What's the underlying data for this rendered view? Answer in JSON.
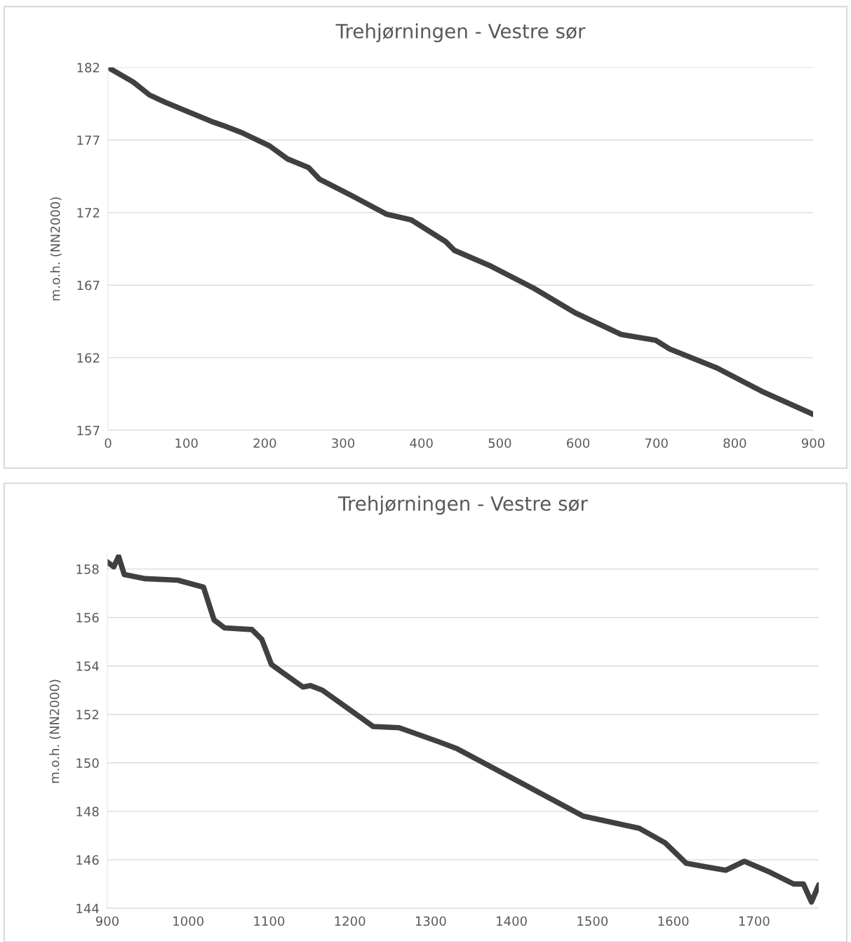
{
  "chart_data": [
    {
      "type": "line",
      "title": "Trehjørningen - Vestre sør",
      "ylabel": "m.o.h. (NN2000)",
      "xlim": [
        0,
        900
      ],
      "xticks": [
        0,
        100,
        200,
        300,
        400,
        500,
        600,
        700,
        800,
        900
      ],
      "ylim": [
        157,
        182
      ],
      "yticks": [
        157,
        162,
        167,
        172,
        177,
        182
      ],
      "grid": "y",
      "line_style": "solid",
      "series": [
        {
          "color": "#404040",
          "x": [
            0,
            32,
            53,
            73,
            131,
            147,
            171,
            206,
            229,
            256,
            270,
            310,
            355,
            387,
            431,
            442,
            489,
            543,
            596,
            655,
            699,
            717,
            777,
            834,
            900
          ],
          "values": [
            182.0,
            181.0,
            180.1,
            179.6,
            178.3,
            178.0,
            177.5,
            176.6,
            175.7,
            175.1,
            174.3,
            173.2,
            171.9,
            171.5,
            170.0,
            169.4,
            168.3,
            166.8,
            165.1,
            163.6,
            163.2,
            162.6,
            161.3,
            159.7,
            158.1
          ]
        }
      ]
    },
    {
      "type": "line",
      "title": "Trehjørningen - Vestre sør",
      "ylabel": "m.o.h. (NN2000)",
      "xlim": [
        900,
        1780
      ],
      "xticks": [
        900,
        1000,
        1100,
        1200,
        1300,
        1400,
        1500,
        1600,
        1700
      ],
      "ylim": [
        144,
        158.6
      ],
      "yticks": [
        144,
        146,
        148,
        150,
        152,
        154,
        156,
        158
      ],
      "grid": "y",
      "line_style": "solid",
      "series": [
        {
          "color": "#404040",
          "x": [
            900,
            908,
            914,
            921,
            947,
            987,
            1019,
            1032,
            1045,
            1079,
            1091,
            1103,
            1118,
            1142,
            1151,
            1166,
            1229,
            1261,
            1310,
            1333,
            1489,
            1558,
            1590,
            1616,
            1642,
            1665,
            1688,
            1720,
            1749,
            1761,
            1771,
            1780
          ],
          "values": [
            158.29,
            158.09,
            158.52,
            157.77,
            157.6,
            157.54,
            157.25,
            155.9,
            155.57,
            155.5,
            155.1,
            154.06,
            153.7,
            153.13,
            153.19,
            153.0,
            151.5,
            151.45,
            150.87,
            150.58,
            147.8,
            147.3,
            146.7,
            145.86,
            145.7,
            145.57,
            145.94,
            145.48,
            145.0,
            145.0,
            144.26,
            144.96
          ]
        }
      ]
    }
  ]
}
